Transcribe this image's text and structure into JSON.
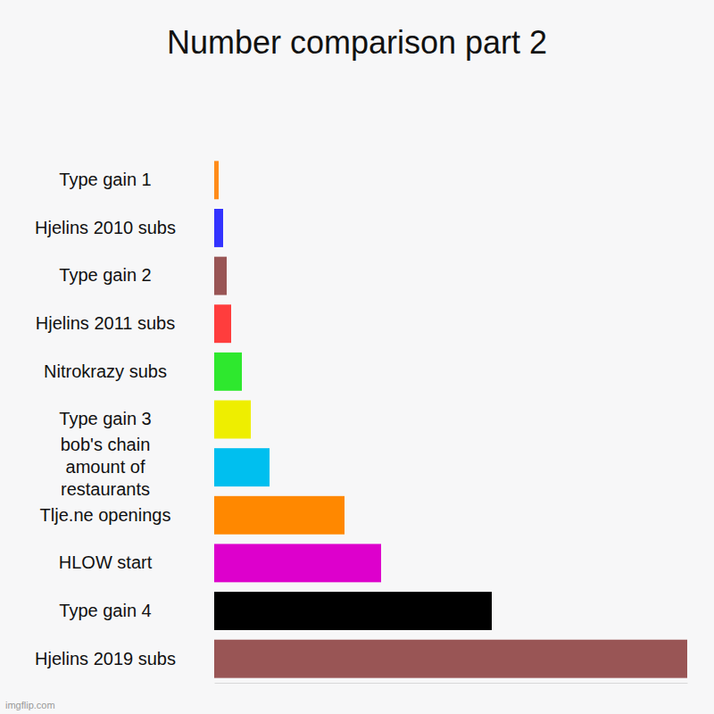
{
  "chart_data": {
    "type": "bar",
    "title": "Number comparison part 2",
    "orientation": "horizontal",
    "categories": [
      "Type gain 1",
      "Hjelins 2010 subs",
      "Type gain 2",
      "Hjelins 2011 subs",
      "Nitrokrazy subs",
      "Type gain 3",
      "bob's chain amount of restaurants",
      "Tlje.ne openings",
      "HLOW start",
      "Type gain 4",
      "Hjelins 2019 subs"
    ],
    "values": [
      5,
      10,
      14,
      19,
      31,
      41,
      62,
      146,
      187,
      311,
      530
    ],
    "colors": [
      "#ff8c1a",
      "#3333ff",
      "#995555",
      "#ff3d3d",
      "#2ee82e",
      "#eeee00",
      "#00bfef",
      "#ff8800",
      "#dd00cc",
      "#000000",
      "#995555"
    ],
    "xlim": [
      0,
      530
    ],
    "tick_labels": false,
    "grid": false,
    "annotations": [
      "imgflip.com"
    ]
  }
}
